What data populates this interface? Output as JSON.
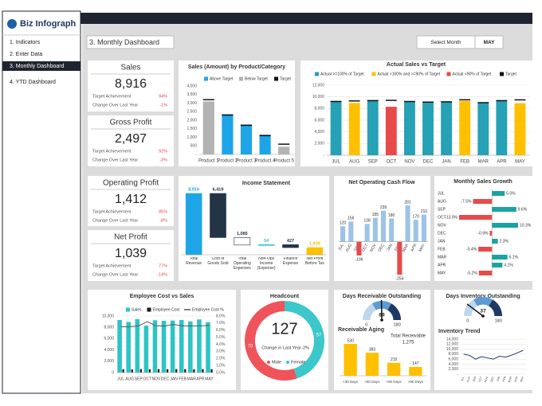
{
  "sidebar": {
    "logo": "Biz Infograph",
    "menu": [
      "1. Indicators",
      "2. Enter Data",
      "3. Monthly Dashboard",
      "4. YTD Dashboard"
    ],
    "active": 2
  },
  "header": {
    "title": "3. Monthly Dashboard",
    "select_label": "Select Month",
    "selected": "MAY"
  },
  "kpis": [
    {
      "title": "Sales",
      "value": "8,916",
      "rows": [
        {
          "label": "Target Achievement",
          "value": "94%"
        },
        {
          "label": "Change Over Last Year",
          "value": "-1%"
        }
      ]
    },
    {
      "title": "Gross Profit",
      "value": "2,497",
      "rows": [
        {
          "label": "Target Achievement",
          "value": "92%"
        },
        {
          "label": "Change Over Last Year",
          "value": "-3%"
        }
      ]
    },
    {
      "title": "Operating Profit",
      "value": "1,412",
      "rows": [
        {
          "label": "Target Achievement",
          "value": "85%"
        },
        {
          "label": "Change Over Last Year",
          "value": "-8%"
        }
      ]
    },
    {
      "title": "Net Profit",
      "value": "1,039",
      "rows": [
        {
          "label": "Target Achievement",
          "value": "77%"
        },
        {
          "label": "Change Over Last Year",
          "value": "-14%"
        }
      ]
    }
  ],
  "chart_data": [
    {
      "type": "bar",
      "title": "Sales (Amount) by Product/Category",
      "legend": true,
      "categories": [
        "Product 1",
        "Product 2",
        "Product 3",
        "Product 4",
        "Product 5"
      ],
      "series": [
        {
          "name": "Above Target",
          "color": "#1ea5e8",
          "values": [
            null,
            2350,
            1750,
            1150,
            null
          ]
        },
        {
          "name": "Below Target",
          "color": "#b3b3b3",
          "values": [
            3100,
            null,
            null,
            null,
            450
          ]
        },
        {
          "name": "Target",
          "color": "#111111",
          "marker": true,
          "values": [
            3200,
            2300,
            1700,
            1100,
            600
          ]
        }
      ],
      "ylim": [
        0,
        4000
      ],
      "yticks": [
        {
          "value": 0,
          "label": "-"
        },
        500,
        {
          "value": 1000,
          "label": "1,000"
        },
        {
          "value": 1500,
          "label": "1,500"
        },
        {
          "value": 2000,
          "label": "2,000"
        },
        {
          "value": 2500,
          "label": "2,500"
        },
        {
          "value": 3000,
          "label": "3,000"
        },
        {
          "value": 3500,
          "label": "3,500"
        },
        {
          "value": 4000,
          "label": "4,000"
        }
      ],
      "grid": false
    },
    {
      "type": "bar",
      "title": "Actual Sales vs Target",
      "legend": true,
      "categories": [
        "JUL",
        "AUG",
        "SEP",
        "OCT",
        "NOV",
        "DEC",
        "JAN",
        "FEB",
        "MAR",
        "APR",
        "MAY"
      ],
      "series": [
        {
          "name": "Actual >=100% of Target",
          "color": "#26a1b5",
          "values": [
            9300,
            null,
            9450,
            null,
            9250,
            9150,
            9200,
            null,
            9050,
            9400,
            null
          ]
        },
        {
          "name": "Actual <100% and >=90% of Target",
          "color": "#ffc000",
          "values": [
            null,
            8950,
            null,
            null,
            null,
            null,
            null,
            9300,
            null,
            null,
            8916
          ]
        },
        {
          "name": "Actual <90% of Target",
          "color": "#e84a4a",
          "values": [
            null,
            null,
            null,
            8300,
            null,
            null,
            null,
            null,
            null,
            null,
            null
          ]
        },
        {
          "name": "Target",
          "color": "#111111",
          "marker": true,
          "values": [
            9200,
            9300,
            9350,
            9400,
            9200,
            9100,
            9150,
            9500,
            9000,
            9350,
            9485
          ]
        }
      ],
      "ylim": [
        0,
        12000
      ],
      "yticks": [
        {
          "value": 0,
          "label": "-"
        },
        {
          "value": 2000,
          "label": "2,000"
        },
        {
          "value": 4000,
          "label": "4,000"
        },
        {
          "value": 6000,
          "label": "6,000"
        },
        {
          "value": 8000,
          "label": "8,000"
        },
        {
          "value": 10000,
          "label": "10,000"
        },
        {
          "value": 12000,
          "label": "12,000"
        }
      ],
      "grid": true
    },
    {
      "type": "waterfall",
      "title": "Income Statement",
      "categories": [
        "Total Revenue",
        "Cost of Goods Sold",
        "Total Operating Expenses",
        "Non-Ops Income (Expense)",
        "Finance Expense",
        "Net Profit Before Tax"
      ],
      "values": [
        8916,
        6419,
        1085,
        54,
        427,
        1039
      ],
      "value_labels": [
        "8,916",
        "6,419",
        "1,085",
        "54",
        "427",
        "1,039"
      ],
      "measures": [
        "total",
        "decrease",
        "decrease",
        "increase",
        "decrease",
        "total"
      ],
      "colors": [
        "#1ea5e8",
        "#243447",
        "#ffffff",
        "#34c3c3",
        "#243447",
        "#ffc000"
      ]
    },
    {
      "type": "bar",
      "title": "Net Operating Cash Flow",
      "data_labels": true,
      "rotate_labels": true,
      "categories": [
        "JUL",
        "AUG",
        "SEP",
        "OCT",
        "NOV",
        "DEC",
        "JAN",
        "FEB",
        "MAR",
        "APR",
        "MAY"
      ],
      "values": [
        120,
        156,
        -106,
        138,
        185,
        239,
        180,
        -254,
        281,
        170,
        210
      ],
      "color": "#9dc3e6",
      "negative_color": "#e84a4a"
    },
    {
      "type": "bar",
      "title": "Monthly Sales  Growth",
      "orientation": "horizontal",
      "categories": [
        "JUL",
        "AUG",
        "SEP",
        "OCT",
        "NOV",
        "DEC",
        "JAN",
        "FEB",
        "MAR",
        "APR",
        "MAY"
      ],
      "values": [
        5.0,
        -7.5,
        9.6,
        -13.0,
        10.3,
        -0.9,
        2.3,
        -5.4,
        6.1,
        4.1,
        -5.2
      ],
      "value_labels": [
        "5.0%",
        "-7.5%",
        "9.6%",
        "-13.0%",
        "10.3%",
        "-0.9%",
        "2.3%",
        "-5.4%",
        "6.1%",
        "4.1%",
        "-5.2%"
      ],
      "color": "#1aa3a3",
      "negative_color": "#e84a4a"
    },
    {
      "type": "combo",
      "title": "Employee Cost vs Sales",
      "categories": [
        "JUL",
        "AUG",
        "SEP",
        "OCT",
        "NOV",
        "DEC",
        "JAN",
        "FEB",
        "MAR",
        "APR",
        "MAY"
      ],
      "series": [
        {
          "name": "Sales",
          "color": "#2ec4c4",
          "values": [
            9300,
            8950,
            9450,
            8300,
            9250,
            9150,
            9200,
            9300,
            9050,
            9400,
            8916
          ]
        },
        {
          "name": "Employee Cost",
          "color": "#1a1a1a",
          "values": [
            600,
            580,
            620,
            600,
            610,
            600,
            620,
            610,
            590,
            620,
            600
          ]
        },
        {
          "name": "Employee Cost %",
          "color": "#555555",
          "axis": "y2",
          "values": [
            6.5,
            6.5,
            6.6,
            7.2,
            6.6,
            6.6,
            6.8,
            6.6,
            6.6,
            6.6,
            6.7
          ]
        }
      ],
      "ylim": [
        0,
        10000
      ],
      "yticks": [
        0,
        {
          "value": 2000,
          "label": "2,000"
        },
        {
          "value": 4000,
          "label": "4,000"
        },
        {
          "value": 6000,
          "label": "6,000"
        },
        {
          "value": 8000,
          "label": "8,000"
        },
        {
          "value": 10000,
          "label": "10,000"
        }
      ],
      "y2lim": [
        0,
        8
      ],
      "y2ticks": [
        {
          "value": 0,
          "label": "0.0%"
        },
        {
          "value": 1,
          "label": "1.0%"
        },
        {
          "value": 2,
          "label": "2.0%"
        },
        {
          "value": 3,
          "label": "3.0%"
        },
        {
          "value": 4,
          "label": "4.0%"
        },
        {
          "value": 5,
          "label": "5.0%"
        },
        {
          "value": 6,
          "label": "6.0%"
        },
        {
          "value": 7,
          "label": "7.0%"
        },
        {
          "value": 8,
          "label": "8.0%"
        }
      ],
      "grid": true
    },
    {
      "type": "pie",
      "title": "Headcount",
      "hole": 0.74,
      "total": 127,
      "change_label": "Change in Last Year",
      "change_value": "-2%",
      "categories": [
        "Male",
        "Female"
      ],
      "values": [
        70,
        57
      ],
      "colors": [
        "#f0535a",
        "#3cc7cb"
      ]
    },
    {
      "type": "gauge",
      "title": "Days Receivable Outstanding",
      "value": 89,
      "lim": [
        0,
        180
      ],
      "band_colors": [
        "#bdd7ee",
        "#5b9bd5",
        "#1f3864"
      ]
    },
    {
      "type": "bar",
      "title": "Receivable Aging",
      "data_labels": true,
      "total_label": "Total Receivable",
      "total_value": "1,275",
      "categories": [
        "<30 Days",
        "<60 Days",
        "<90 Days",
        ">90 Days"
      ],
      "values": [
        530,
        383,
        215,
        147
      ],
      "color": "#ffc000"
    },
    {
      "type": "gauge",
      "title": "Days Inventory Outstanding",
      "value": 37,
      "lim": [
        0,
        180
      ],
      "band_colors": [
        "#bdd7ee",
        "#5b9bd5",
        "#1f3864"
      ]
    },
    {
      "type": "line",
      "title": "Inventory Trend",
      "categories": [
        "JUL",
        "AUG",
        "SEP",
        "OCT",
        "NOV",
        "DEC",
        "JAN",
        "FEB",
        "MAR",
        "APR",
        "MAY"
      ],
      "values": [
        8000,
        7500,
        6000,
        7000,
        6500,
        6000,
        7200,
        6800,
        7500,
        8500,
        9500
      ],
      "color": "#1f3864",
      "ylim": [
        0,
        14000
      ],
      "yticks": [
        {
          "value": 0,
          "label": "-"
        },
        {
          "value": 2000,
          "label": "2,000"
        },
        {
          "value": 4000,
          "label": "4,000"
        },
        {
          "value": 6000,
          "label": "6,000"
        },
        {
          "value": 8000,
          "label": "8,000"
        },
        {
          "value": 10000,
          "label": "10,000"
        },
        {
          "value": 12000,
          "label": "12,000"
        },
        {
          "value": 14000,
          "label": "14,000"
        }
      ],
      "grid": true
    }
  ]
}
